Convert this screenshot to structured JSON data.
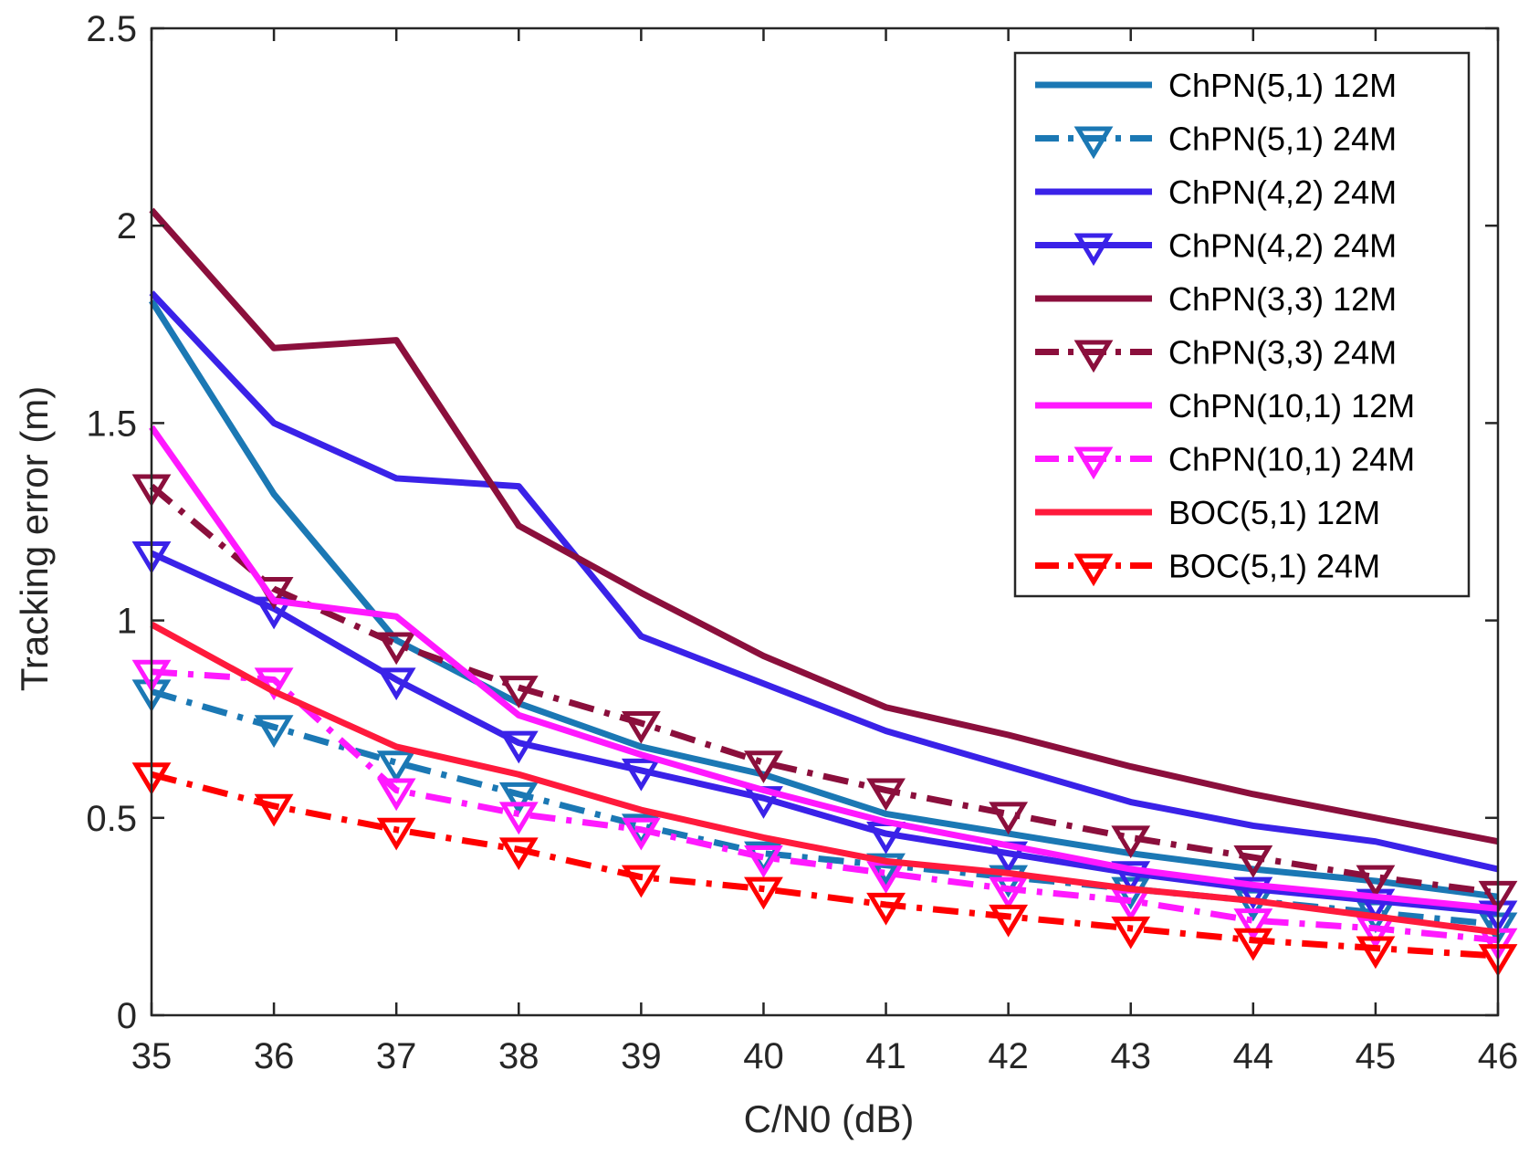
{
  "chart_data": {
    "type": "line",
    "title": "",
    "xlabel": "C/N0 (dB)",
    "ylabel": "Tracking error (m)",
    "x": [
      35,
      36,
      37,
      38,
      39,
      40,
      41,
      42,
      43,
      44,
      45,
      46
    ],
    "xlim": [
      35,
      46
    ],
    "ylim": [
      0,
      2.5
    ],
    "xticks": [
      "35",
      "36",
      "37",
      "38",
      "39",
      "40",
      "41",
      "42",
      "43",
      "44",
      "45",
      "46"
    ],
    "yticks": [
      "0",
      "0.5",
      "1",
      "1.5",
      "2",
      "2.5"
    ],
    "grid": false,
    "legend_position": "top-right",
    "series": [
      {
        "name": "ChPN(5,1) 12M",
        "color": "#1b78b4",
        "style": "solid",
        "marker": "none",
        "values": [
          1.81,
          1.32,
          0.95,
          0.79,
          0.68,
          0.61,
          0.51,
          0.46,
          0.41,
          0.37,
          0.34,
          0.3
        ]
      },
      {
        "name": "ChPN(5,1) 24M",
        "color": "#1b78b4",
        "style": "dashdot",
        "marker": "triangle-down",
        "values": [
          0.82,
          0.73,
          0.64,
          0.56,
          0.48,
          0.41,
          0.38,
          0.35,
          0.32,
          0.29,
          0.26,
          0.23
        ]
      },
      {
        "name": "ChPN(4,2) 24M",
        "color": "#3a22e8",
        "style": "solid",
        "marker": "none",
        "values": [
          1.83,
          1.5,
          1.36,
          1.34,
          0.96,
          0.84,
          0.72,
          0.63,
          0.54,
          0.48,
          0.44,
          0.37
        ]
      },
      {
        "name": "ChPN(4,2) 24M",
        "color": "#3a22e8",
        "style": "solid",
        "marker": "triangle-down",
        "values": [
          1.17,
          1.03,
          0.85,
          0.69,
          0.62,
          0.55,
          0.46,
          0.41,
          0.36,
          0.32,
          0.29,
          0.26
        ]
      },
      {
        "name": "ChPN(3,3) 12M",
        "color": "#8b0f3c",
        "style": "solid",
        "marker": "none",
        "values": [
          2.04,
          1.69,
          1.71,
          1.24,
          1.07,
          0.91,
          0.78,
          0.71,
          0.63,
          0.56,
          0.5,
          0.44
        ]
      },
      {
        "name": "ChPN(3,3) 24M",
        "color": "#8b0f3c",
        "style": "dashdot",
        "marker": "triangle-down",
        "values": [
          1.34,
          1.08,
          0.94,
          0.83,
          0.74,
          0.64,
          0.57,
          0.51,
          0.45,
          0.4,
          0.35,
          0.31
        ]
      },
      {
        "name": "ChPN(10,1) 12M",
        "color": "#ff19ff",
        "style": "solid",
        "marker": "none",
        "values": [
          1.49,
          1.05,
          1.01,
          0.76,
          0.66,
          0.57,
          0.49,
          0.43,
          0.37,
          0.33,
          0.3,
          0.27
        ]
      },
      {
        "name": "ChPN(10,1) 24M",
        "color": "#ff19ff",
        "style": "dashdot",
        "marker": "triangle-down",
        "values": [
          0.87,
          0.85,
          0.57,
          0.51,
          0.47,
          0.4,
          0.36,
          0.32,
          0.29,
          0.24,
          0.22,
          0.19
        ]
      },
      {
        "name": "BOC(5,1) 12M",
        "color": "#ff1a3c",
        "style": "solid",
        "marker": "none",
        "values": [
          0.99,
          0.82,
          0.68,
          0.61,
          0.52,
          0.45,
          0.39,
          0.36,
          0.32,
          0.29,
          0.25,
          0.21
        ]
      },
      {
        "name": "BOC(5,1) 24M",
        "color": "#ff0000",
        "style": "dashdot",
        "marker": "triangle-down",
        "values": [
          0.61,
          0.53,
          0.47,
          0.42,
          0.35,
          0.32,
          0.28,
          0.25,
          0.22,
          0.19,
          0.17,
          0.15
        ]
      }
    ]
  }
}
